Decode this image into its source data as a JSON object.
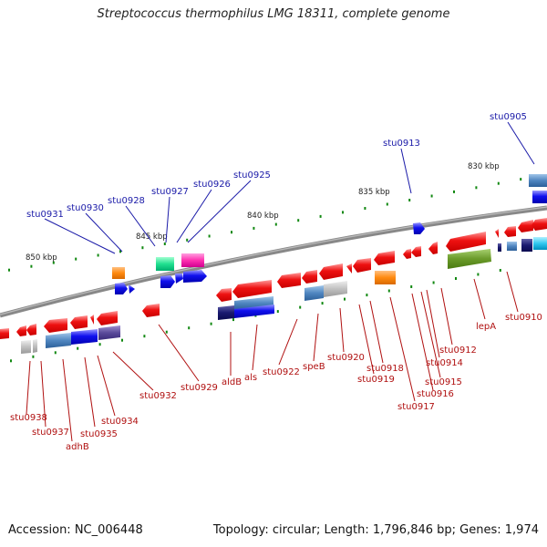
{
  "header": {
    "title": "Streptococcus thermophilus LMG 18311, complete genome"
  },
  "footer": {
    "accession": "Accession: NC_006448",
    "summary": "Topology: circular; Length: 1,796,846 bp; Genes: 1,974"
  },
  "scale_labels": [
    "830 kbp",
    "835 kbp",
    "840 kbp",
    "845 kbp",
    "850 kbp"
  ],
  "genes_top": [
    "stu0905",
    "stu0913",
    "stu0925",
    "stu0926",
    "stu0927",
    "stu0928",
    "stu0930",
    "stu0931"
  ],
  "genes_bottom": [
    "stu0910",
    "lepA",
    "stu0912",
    "stu0914",
    "stu0915",
    "stu0916",
    "stu0917",
    "stu0918",
    "stu0919",
    "stu0920",
    "speB",
    "stu0922",
    "als",
    "aldB",
    "stu0929",
    "stu0932",
    "stu0934",
    "stu0935",
    "adhB",
    "stu0937",
    "stu0938"
  ],
  "colors": {
    "forward_strand_gene": "#1010e0",
    "reverse_strand_gene": "#e81010",
    "backbone": "#808080",
    "top_label": "#1a1aa8",
    "bottom_label": "#b01010",
    "tick": "#118811"
  }
}
